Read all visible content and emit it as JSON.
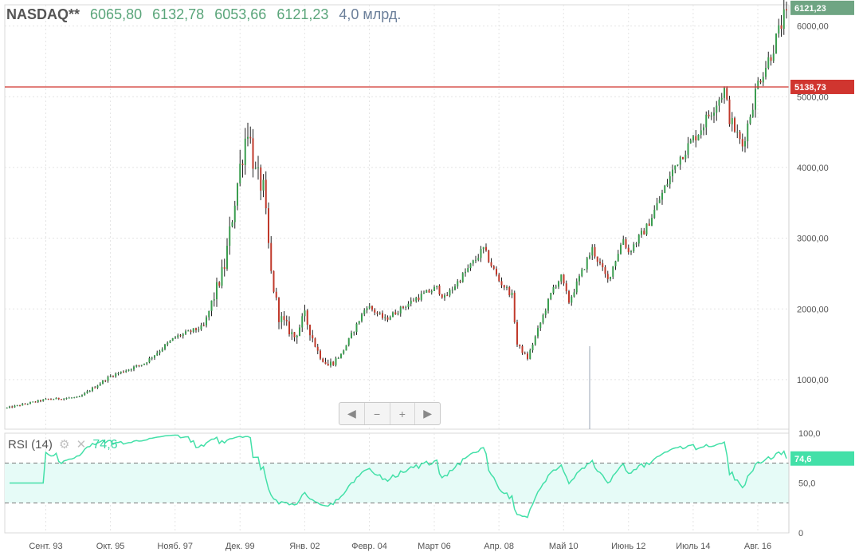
{
  "header": {
    "symbol": "NASDAQ**",
    "open": "6065,80",
    "high": "6132,78",
    "low": "6053,66",
    "close": "6121,23",
    "volume": "4,0 млрд."
  },
  "rsi_header": {
    "label": "RSI (14)",
    "value": "74,6"
  },
  "navigation": {
    "prev": "◀",
    "zoom_out": "−",
    "zoom_in": "+",
    "next": "▶"
  },
  "colors": {
    "up_candle": "#3a9d4f",
    "down_candle": "#c0392b",
    "resistance_line": "#d0352f",
    "last_price_tag": "#6fa583",
    "rsi_line": "#43e0a8",
    "rsi_fill": "#e6fbf7"
  },
  "chart_data": [
    {
      "type": "candlestick",
      "x_tick_labels": [
        "Сент. 93",
        "Окт. 95",
        "Нояб. 97",
        "Дек. 99",
        "Янв. 02",
        "Февр. 04",
        "Март 06",
        "Апр. 08",
        "Май 10",
        "Июнь 12",
        "Июль 14",
        "Авг. 16"
      ],
      "y_tick_labels": [
        "1000,00",
        "2000,00",
        "3000,00",
        "4000,00",
        "5000,00",
        "6000,00"
      ],
      "ylim": [
        300,
        6300
      ],
      "horizontal_line": {
        "value": 5138.73,
        "label": "5138,73"
      },
      "last_price": {
        "value": 6121.23,
        "label": "6121,23"
      },
      "grid": true,
      "x": [
        "1992-06",
        "1993-09",
        "1994-10",
        "1995-10",
        "1996-11",
        "1997-11",
        "1998-10",
        "1999-06",
        "1999-12",
        "2000-03",
        "2000-06",
        "2000-09",
        "2000-12",
        "2001-03",
        "2001-09",
        "2002-01",
        "2002-06",
        "2002-10",
        "2003-03",
        "2004-01",
        "2004-08",
        "2005-08",
        "2006-04",
        "2006-07",
        "2007-07",
        "2007-10",
        "2008-04",
        "2008-09",
        "2008-11",
        "2009-03",
        "2010-01",
        "2010-04",
        "2010-07",
        "2011-04",
        "2011-10",
        "2012-04",
        "2012-06",
        "2013-01",
        "2014-01",
        "2014-09",
        "2015-07",
        "2015-09",
        "2016-02",
        "2016-08",
        "2017-01",
        "2017-06"
      ],
      "close": [
        600,
        720,
        750,
        1050,
        1230,
        1600,
        1750,
        2600,
        4000,
        4600,
        3900,
        3700,
        2500,
        1900,
        1600,
        1900,
        1400,
        1200,
        1350,
        2050,
        1850,
        2150,
        2300,
        2150,
        2700,
        2850,
        2400,
        2200,
        1500,
        1300,
        2300,
        2450,
        2100,
        2850,
        2400,
        3000,
        2800,
        3150,
        4100,
        4500,
        5100,
        4700,
        4300,
        5200,
        5600,
        6121
      ]
    },
    {
      "type": "line",
      "title": "RSI (14)",
      "y_tick_labels": [
        "0",
        "50,0",
        "100,0"
      ],
      "ylim": [
        0,
        100
      ],
      "bands": [
        30,
        70
      ],
      "last_value": 74.6
    }
  ]
}
